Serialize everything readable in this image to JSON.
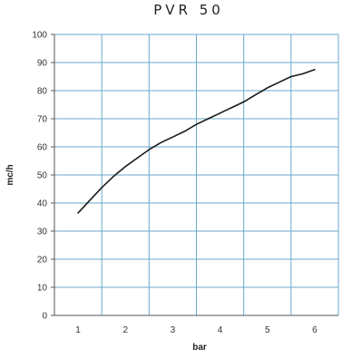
{
  "chart_data": {
    "type": "line",
    "title": "PVR 50",
    "xlabel": "bar",
    "ylabel": "mc/h",
    "xlim": [
      0.5,
      6.5
    ],
    "ylim": [
      0,
      100
    ],
    "xticks": [
      1,
      2,
      3,
      4,
      5,
      6
    ],
    "yticks": [
      0,
      10,
      20,
      30,
      40,
      50,
      60,
      70,
      80,
      90,
      100
    ],
    "grid": true,
    "legend": "none",
    "colors": {
      "grid": "#6aa9c9",
      "line": "#1a1a1a",
      "axis": "#555555"
    },
    "series": [
      {
        "x": [
          1.0,
          1.25,
          1.5,
          1.75,
          2.0,
          2.25,
          2.5,
          2.75,
          3.0,
          3.25,
          3.5,
          3.75,
          4.0,
          4.25,
          4.5,
          4.75,
          5.0,
          5.25,
          5.5,
          5.75,
          6.0
        ],
        "values": [
          36.5,
          41,
          45.5,
          49.5,
          53,
          56,
          59,
          61.5,
          63.5,
          65.5,
          68,
          70,
          72,
          74,
          76,
          78.5,
          81,
          83,
          85,
          86,
          87.5
        ]
      }
    ]
  }
}
